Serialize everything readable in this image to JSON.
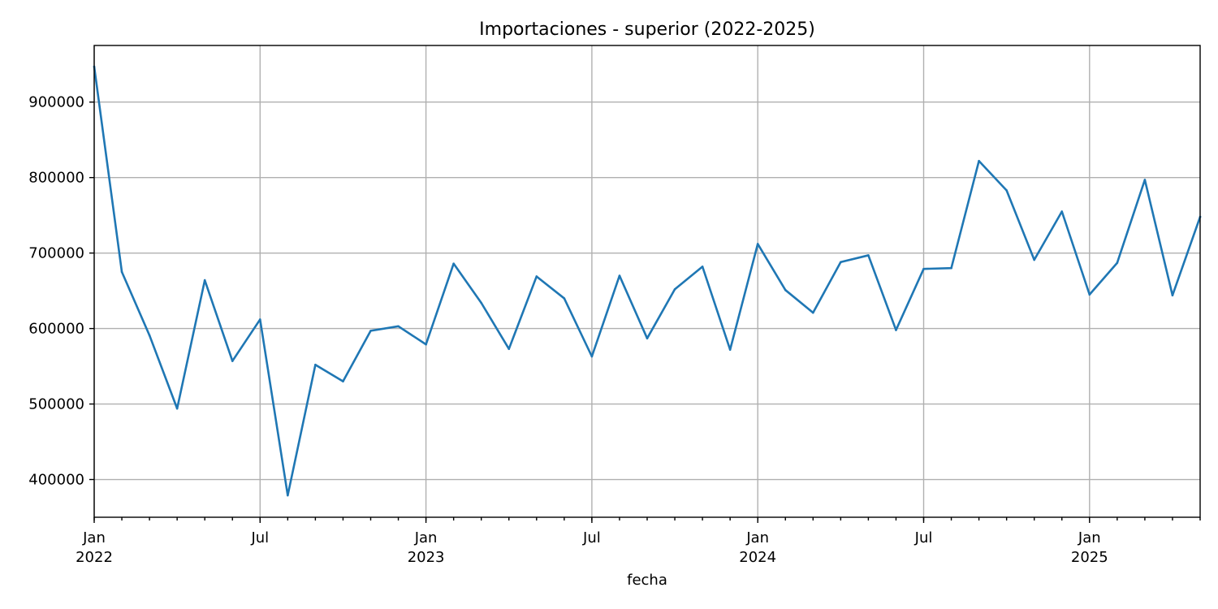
{
  "chart_data": {
    "type": "line",
    "title": "Importaciones - superior (2022-2025)",
    "xlabel": "fecha",
    "ylabel": "",
    "grid": true,
    "colors": {
      "line": "#1f77b4",
      "grid": "#b0b0b0"
    },
    "ylim": [
      350000,
      975000
    ],
    "xlim": [
      "2022-01",
      "2025-05"
    ],
    "yticks": [
      400000,
      500000,
      600000,
      700000,
      800000,
      900000
    ],
    "ytick_labels": [
      "400000",
      "500000",
      "600000",
      "700000",
      "800000",
      "900000"
    ],
    "xticks_major": [
      {
        "date": "2022-01",
        "label": "Jan",
        "year": "2022"
      },
      {
        "date": "2022-07",
        "label": "Jul",
        "year": ""
      },
      {
        "date": "2023-01",
        "label": "Jan",
        "year": "2023"
      },
      {
        "date": "2023-07",
        "label": "Jul",
        "year": ""
      },
      {
        "date": "2024-01",
        "label": "Jan",
        "year": "2024"
      },
      {
        "date": "2024-07",
        "label": "Jul",
        "year": ""
      },
      {
        "date": "2025-01",
        "label": "Jan",
        "year": "2025"
      }
    ],
    "x": [
      "2022-01",
      "2022-02",
      "2022-03",
      "2022-04",
      "2022-05",
      "2022-06",
      "2022-07",
      "2022-08",
      "2022-09",
      "2022-10",
      "2022-11",
      "2022-12",
      "2023-01",
      "2023-02",
      "2023-03",
      "2023-04",
      "2023-05",
      "2023-06",
      "2023-07",
      "2023-08",
      "2023-09",
      "2023-10",
      "2023-11",
      "2023-12",
      "2024-01",
      "2024-02",
      "2024-03",
      "2024-04",
      "2024-05",
      "2024-06",
      "2024-07",
      "2024-08",
      "2024-09",
      "2024-10",
      "2024-11",
      "2024-12",
      "2025-01",
      "2025-02",
      "2025-03",
      "2025-04",
      "2025-05"
    ],
    "series": [
      {
        "values": [
          947000,
          675000,
          591000,
          494000,
          664000,
          557000,
          612000,
          379000,
          552000,
          530000,
          597000,
          603000,
          579000,
          686000,
          634000,
          573000,
          669000,
          640000,
          563000,
          670000,
          587000,
          652000,
          682000,
          572000,
          712000,
          651000,
          621000,
          688000,
          697000,
          598000,
          679000,
          680000,
          822000,
          783000,
          691000,
          755000,
          645000,
          687000,
          797000,
          644000,
          748000
        ]
      }
    ]
  }
}
